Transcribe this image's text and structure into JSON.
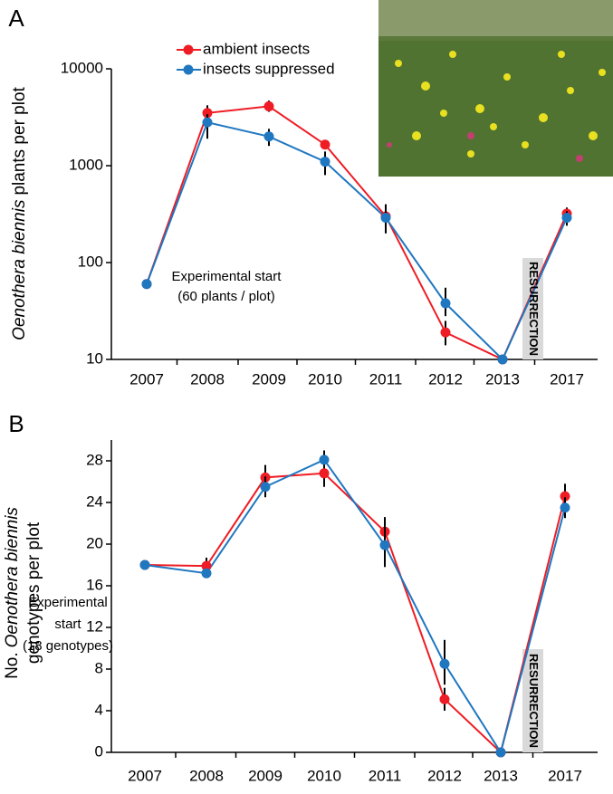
{
  "chart_data": [
    {
      "type": "line",
      "panel_label": "A",
      "y_label_italic": "Oenothera biennis",
      "y_label": "plants per plot",
      "categories": [
        "2007",
        "2008",
        "2009",
        "2010",
        "2011",
        "2012",
        "2013",
        "2017"
      ],
      "series": [
        {
          "name": "ambient insects",
          "color": "#ee1c24",
          "values": [
            60,
            3500,
            4100,
            1650,
            300,
            19,
            10,
            320
          ],
          "error_low": [
            null,
            2900,
            3600,
            1500,
            240,
            14,
            null,
            270
          ],
          "error_high": [
            null,
            4200,
            4700,
            1800,
            380,
            25,
            null,
            370
          ]
        },
        {
          "name": "insects suppressed",
          "color": "#1f77c0",
          "values": [
            60,
            2800,
            2000,
            1100,
            290,
            38,
            10,
            290
          ],
          "error_low": [
            null,
            1900,
            1600,
            800,
            200,
            28,
            null,
            240
          ],
          "error_high": [
            null,
            3400,
            2400,
            1400,
            400,
            55,
            null,
            340
          ]
        }
      ],
      "log_y": true,
      "ylim": [
        10,
        10000
      ],
      "yticks": [
        10,
        100,
        1000,
        10000
      ],
      "legend": "top",
      "annotation": [
        "Experimental start",
        "(60 plants / plot)"
      ],
      "resurrection_label": "RESURRECTION"
    },
    {
      "type": "line",
      "panel_label": "B",
      "y_label_prefix": "No.",
      "y_label_italic": "Oenothera biennis",
      "y_label_line2": "genotypes per plot",
      "categories": [
        "2007",
        "2008",
        "2009",
        "2010",
        "2011",
        "2012",
        "2013",
        "2017"
      ],
      "series": [
        {
          "color": "#ee1c24",
          "values": [
            18,
            17.9,
            26.4,
            26.8,
            21.2,
            5.1,
            0,
            24.6
          ],
          "error_low": [
            null,
            17.2,
            25.2,
            25.5,
            19.8,
            4,
            null,
            23.6
          ],
          "error_high": [
            null,
            18.7,
            27.6,
            28,
            22.6,
            6.2,
            null,
            25.8
          ]
        },
        {
          "color": "#1f77c0",
          "values": [
            18,
            17.2,
            25.5,
            28.1,
            19.9,
            8.5,
            0,
            23.5
          ],
          "error_low": [
            null,
            null,
            24.5,
            27.3,
            17.8,
            6.5,
            null,
            22.5
          ],
          "error_high": [
            null,
            null,
            26.5,
            29,
            22,
            10.8,
            null,
            24.5
          ]
        }
      ],
      "log_y": false,
      "ylim": [
        0,
        30
      ],
      "yticks": [
        0,
        4,
        8,
        12,
        16,
        20,
        24,
        28
      ],
      "annotation": [
        "Experimental",
        "start",
        "(18 genotypes)"
      ],
      "resurrection_label": "RESURRECTION"
    }
  ]
}
